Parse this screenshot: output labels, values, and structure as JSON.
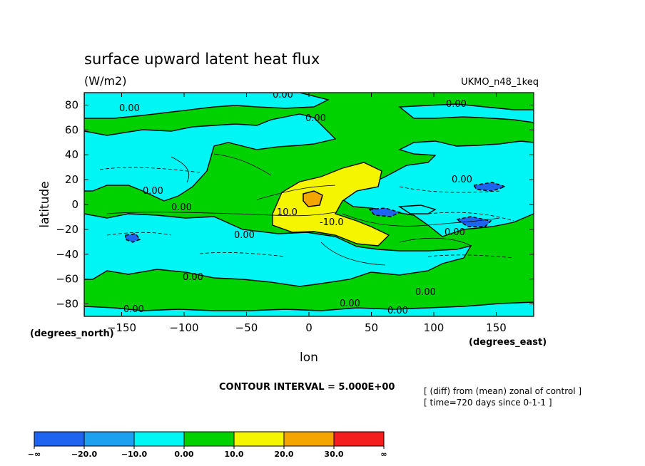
{
  "chart_data": {
    "type": "heatmap",
    "title": "surface upward latent heat flux",
    "subtitle": "(W/m2)",
    "model_label": "UKMO_n48_1keq",
    "xlabel": "lon",
    "ylabel": "latitude",
    "x_units": "(degrees_east)",
    "y_units": "(degrees_north)",
    "xlim": [
      -180,
      180
    ],
    "ylim": [
      -90,
      90
    ],
    "x_ticks": [
      -150,
      -100,
      -50,
      0,
      50,
      100,
      150
    ],
    "y_ticks": [
      -80,
      -60,
      -40,
      -20,
      0,
      20,
      40,
      60,
      80
    ],
    "x_tick_labels": [
      "−150",
      "−100",
      "−50",
      "0",
      "50",
      "100",
      "150"
    ],
    "y_tick_labels": [
      "−80",
      "−60",
      "−40",
      "−20",
      "0",
      "20",
      "40",
      "60",
      "80"
    ],
    "contour_interval_text": "CONTOUR INTERVAL = 5.000E+00",
    "notes": [
      "[ (diff) from (mean) zonal of control ]",
      "[ time=720 days since 0-1-1 ]"
    ],
    "contour_labels": [
      "0.00",
      "10.0",
      "-10.0"
    ],
    "colorbar": {
      "labels": [
        "−∞",
        "−20.0",
        "−10.0",
        "0.00",
        "10.0",
        "20.0",
        "30.0",
        "∞"
      ],
      "colors": [
        "#1e64f0",
        "#1ea0f0",
        "#00f5f5",
        "#00d200",
        "#f5f500",
        "#f5a500",
        "#f51e1e"
      ]
    },
    "colors": {
      "below_-20": "#1e64f0",
      "-20_to_-10": "#1ea0f0",
      "-10_to_0": "#00f5f5",
      "0_to_10": "#00d200",
      "10_to_20": "#f5f500",
      "20_to_30": "#f5a500"
    }
  }
}
